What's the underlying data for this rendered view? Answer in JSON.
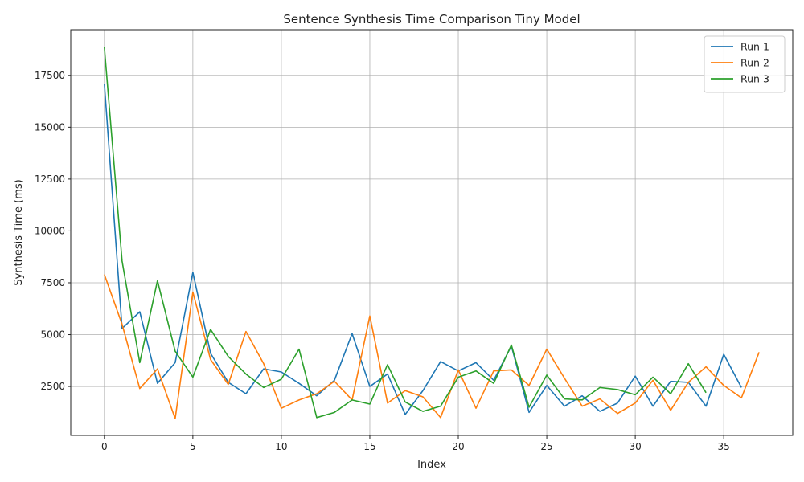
{
  "chart_data": {
    "type": "line",
    "title": "Sentence Synthesis Time Comparison Tiny Model",
    "xlabel": "Index",
    "ylabel": "Synthesis Time (ms)",
    "xlim": [
      -1.9,
      38.9
    ],
    "ylim": [
      140,
      19700
    ],
    "xticks": [
      0,
      5,
      10,
      15,
      20,
      25,
      30,
      35
    ],
    "xtick_labels": [
      "0",
      "5",
      "10",
      "15",
      "20",
      "25",
      "30",
      "35"
    ],
    "yticks": [
      2500,
      5000,
      7500,
      10000,
      12500,
      15000,
      17500
    ],
    "ytick_labels": [
      "2500",
      "5000",
      "7500",
      "10000",
      "12500",
      "15000",
      "17500"
    ],
    "grid": true,
    "legend_position": "top-right",
    "series": [
      {
        "name": "Run 1",
        "color": "#1f77b4",
        "values": [
          17100,
          5300,
          6100,
          2650,
          3650,
          8000,
          4100,
          2700,
          2150,
          3350,
          3200,
          2650,
          2050,
          2800,
          5050,
          2500,
          3100,
          1150,
          2300,
          3700,
          3250,
          3650,
          2800,
          4450,
          1250,
          2550,
          1550,
          2050,
          1300,
          1700,
          3000,
          1550,
          2750,
          2700,
          1550,
          4050,
          2450
        ]
      },
      {
        "name": "Run 2",
        "color": "#ff7f0e",
        "values": [
          7900,
          5500,
          2400,
          3350,
          950,
          7050,
          3800,
          2600,
          5150,
          3600,
          1450,
          1850,
          2150,
          2750,
          1850,
          5900,
          1700,
          2300,
          2000,
          1000,
          3300,
          1450,
          3250,
          3300,
          2550,
          4300,
          2900,
          1550,
          1900,
          1200,
          1700,
          2800,
          1350,
          2700,
          3450,
          2550,
          1950,
          4150
        ]
      },
      {
        "name": "Run 3",
        "color": "#2ca02c",
        "values": [
          18850,
          8550,
          3650,
          7600,
          4200,
          2950,
          5250,
          3950,
          3100,
          2450,
          2850,
          4300,
          1000,
          1250,
          1850,
          1650,
          3550,
          1750,
          1300,
          1550,
          2950,
          3250,
          2650,
          4500,
          1500,
          3050,
          1900,
          1850,
          2450,
          2350,
          2100,
          2950,
          2150,
          3600,
          2200
        ]
      }
    ]
  }
}
